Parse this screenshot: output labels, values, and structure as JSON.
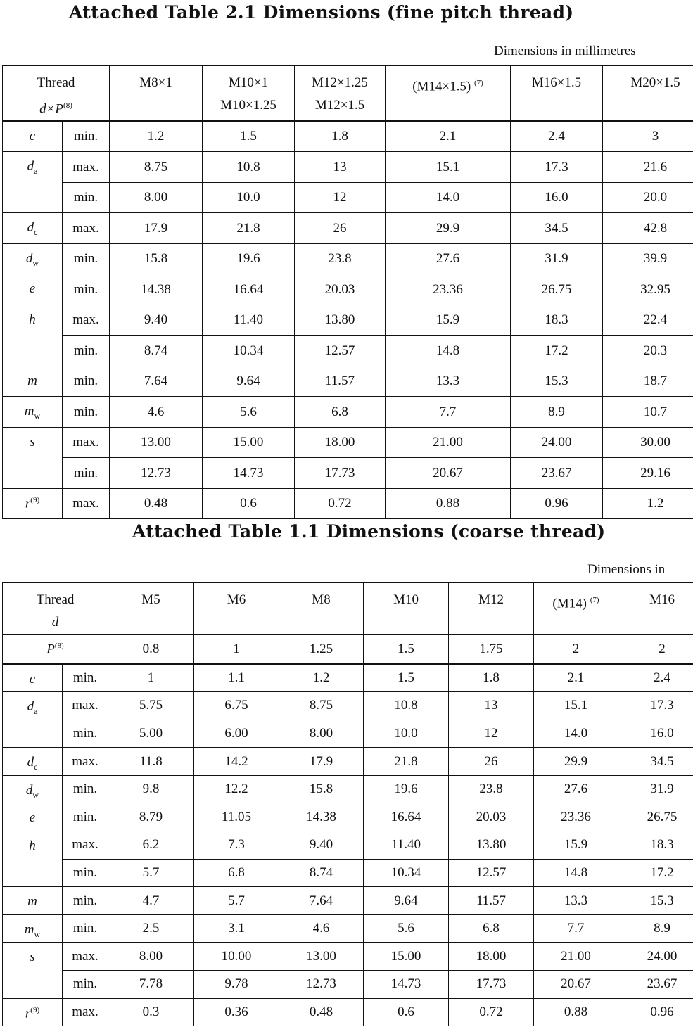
{
  "fine": {
    "title": "Attached Table 2.1   Dimensions (fine pitch thread)",
    "units": "Dimensions in millimetres",
    "header_label": {
      "line1": "Thread",
      "line2": "d×P",
      "note": "(8)"
    },
    "columns": [
      {
        "lines": [
          "M8×1"
        ]
      },
      {
        "lines": [
          "M10×1",
          "M10×1.25"
        ]
      },
      {
        "lines": [
          "M12×1.25",
          "M12×1.5"
        ]
      },
      {
        "lines": [
          "(M14×1.5)"
        ],
        "note": "(7)"
      },
      {
        "lines": [
          "M16×1.5"
        ]
      },
      {
        "lines": [
          "M20×1.5"
        ]
      }
    ],
    "groups": [
      {
        "symbol": "c",
        "sub": "",
        "rows": [
          {
            "qual": "min.",
            "values": [
              "1.2",
              "1.5",
              "1.8",
              "2.1",
              "2.4",
              "3"
            ]
          }
        ]
      },
      {
        "symbol": "d",
        "sub": "a",
        "rows": [
          {
            "qual": "max.",
            "values": [
              "8.75",
              "10.8",
              "13",
              "15.1",
              "17.3",
              "21.6"
            ]
          },
          {
            "qual": "min.",
            "values": [
              "8.00",
              "10.0",
              "12",
              "14.0",
              "16.0",
              "20.0"
            ]
          }
        ]
      },
      {
        "symbol": "d",
        "sub": "c",
        "rows": [
          {
            "qual": "max.",
            "values": [
              "17.9",
              "21.8",
              "26",
              "29.9",
              "34.5",
              "42.8"
            ]
          }
        ]
      },
      {
        "symbol": "d",
        "sub": "w",
        "rows": [
          {
            "qual": "min.",
            "values": [
              "15.8",
              "19.6",
              "23.8",
              "27.6",
              "31.9",
              "39.9"
            ]
          }
        ]
      },
      {
        "symbol": "e",
        "sub": "",
        "rows": [
          {
            "qual": "min.",
            "values": [
              "14.38",
              "16.64",
              "20.03",
              "23.36",
              "26.75",
              "32.95"
            ]
          }
        ]
      },
      {
        "symbol": "h",
        "sub": "",
        "rows": [
          {
            "qual": "max.",
            "values": [
              "9.40",
              "11.40",
              "13.80",
              "15.9",
              "18.3",
              "22.4"
            ]
          },
          {
            "qual": "min.",
            "values": [
              "8.74",
              "10.34",
              "12.57",
              "14.8",
              "17.2",
              "20.3"
            ]
          }
        ]
      },
      {
        "symbol": "m",
        "sub": "",
        "rows": [
          {
            "qual": "min.",
            "values": [
              "7.64",
              "9.64",
              "11.57",
              "13.3",
              "15.3",
              "18.7"
            ]
          }
        ]
      },
      {
        "symbol": "m",
        "sub": "w",
        "rows": [
          {
            "qual": "min.",
            "values": [
              "4.6",
              "5.6",
              "6.8",
              "7.7",
              "8.9",
              "10.7"
            ]
          }
        ]
      },
      {
        "symbol": "s",
        "sub": "",
        "rows": [
          {
            "qual": "max.",
            "values": [
              "13.00",
              "15.00",
              "18.00",
              "21.00",
              "24.00",
              "30.00"
            ]
          },
          {
            "qual": "min.",
            "values": [
              "12.73",
              "14.73",
              "17.73",
              "20.67",
              "23.67",
              "29.16"
            ]
          }
        ]
      },
      {
        "symbol": "r",
        "sub": "",
        "note": "(9)",
        "rows": [
          {
            "qual": "max.",
            "values": [
              "0.48",
              "0.6",
              "0.72",
              "0.88",
              "0.96",
              "1.2"
            ]
          }
        ]
      }
    ]
  },
  "coarse": {
    "title": "Attached Table 1.1   Dimensions (coarse thread)",
    "units": "Dimensions in",
    "header_label": {
      "line1": "Thread",
      "line2": "d",
      "note": ""
    },
    "columns": [
      {
        "lines": [
          "M5"
        ]
      },
      {
        "lines": [
          "M6"
        ]
      },
      {
        "lines": [
          "M8"
        ]
      },
      {
        "lines": [
          "M10"
        ]
      },
      {
        "lines": [
          "M12"
        ]
      },
      {
        "lines": [
          "(M14)"
        ],
        "note": "(7)"
      },
      {
        "lines": [
          "M16"
        ]
      }
    ],
    "pitch_row": {
      "symbol": "P",
      "note": "(8)",
      "values": [
        "0.8",
        "1",
        "1.25",
        "1.5",
        "1.75",
        "2",
        "2"
      ]
    },
    "groups": [
      {
        "symbol": "c",
        "sub": "",
        "rows": [
          {
            "qual": "min.",
            "values": [
              "1",
              "1.1",
              "1.2",
              "1.5",
              "1.8",
              "2.1",
              "2.4"
            ]
          }
        ]
      },
      {
        "symbol": "d",
        "sub": "a",
        "rows": [
          {
            "qual": "max.",
            "values": [
              "5.75",
              "6.75",
              "8.75",
              "10.8",
              "13",
              "15.1",
              "17.3"
            ]
          },
          {
            "qual": "min.",
            "values": [
              "5.00",
              "6.00",
              "8.00",
              "10.0",
              "12",
              "14.0",
              "16.0"
            ]
          }
        ]
      },
      {
        "symbol": "d",
        "sub": "c",
        "rows": [
          {
            "qual": "max.",
            "values": [
              "11.8",
              "14.2",
              "17.9",
              "21.8",
              "26",
              "29.9",
              "34.5"
            ]
          }
        ]
      },
      {
        "symbol": "d",
        "sub": "w",
        "rows": [
          {
            "qual": "min.",
            "values": [
              "9.8",
              "12.2",
              "15.8",
              "19.6",
              "23.8",
              "27.6",
              "31.9"
            ]
          }
        ]
      },
      {
        "symbol": "e",
        "sub": "",
        "rows": [
          {
            "qual": "min.",
            "values": [
              "8.79",
              "11.05",
              "14.38",
              "16.64",
              "20.03",
              "23.36",
              "26.75"
            ]
          }
        ]
      },
      {
        "symbol": "h",
        "sub": "",
        "rows": [
          {
            "qual": "max.",
            "values": [
              "6.2",
              "7.3",
              "9.40",
              "11.40",
              "13.80",
              "15.9",
              "18.3"
            ]
          },
          {
            "qual": "min.",
            "values": [
              "5.7",
              "6.8",
              "8.74",
              "10.34",
              "12.57",
              "14.8",
              "17.2"
            ]
          }
        ]
      },
      {
        "symbol": "m",
        "sub": "",
        "rows": [
          {
            "qual": "min.",
            "values": [
              "4.7",
              "5.7",
              "7.64",
              "9.64",
              "11.57",
              "13.3",
              "15.3"
            ]
          }
        ]
      },
      {
        "symbol": "m",
        "sub": "w",
        "rows": [
          {
            "qual": "min.",
            "values": [
              "2.5",
              "3.1",
              "4.6",
              "5.6",
              "6.8",
              "7.7",
              "8.9"
            ]
          }
        ]
      },
      {
        "symbol": "s",
        "sub": "",
        "rows": [
          {
            "qual": "max.",
            "values": [
              "8.00",
              "10.00",
              "13.00",
              "15.00",
              "18.00",
              "21.00",
              "24.00"
            ]
          },
          {
            "qual": "min.",
            "values": [
              "7.78",
              "9.78",
              "12.73",
              "14.73",
              "17.73",
              "20.67",
              "23.67"
            ]
          }
        ]
      },
      {
        "symbol": "r",
        "sub": "",
        "note": "(9)",
        "rows": [
          {
            "qual": "max.",
            "values": [
              "0.3",
              "0.36",
              "0.48",
              "0.6",
              "0.72",
              "0.88",
              "0.96"
            ]
          }
        ]
      }
    ]
  }
}
